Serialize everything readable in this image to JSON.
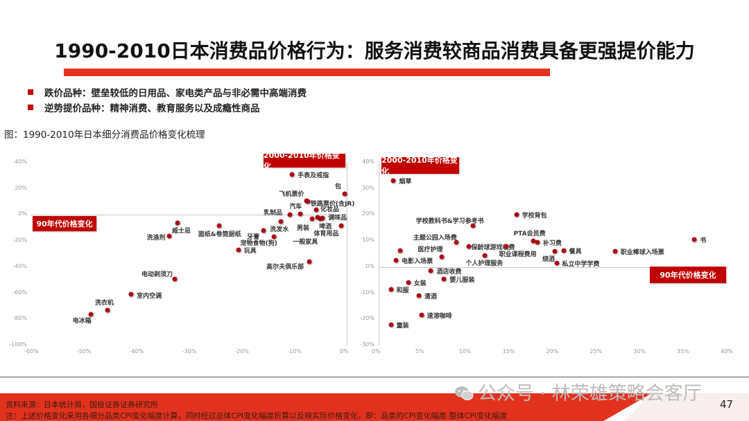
{
  "title": "1990-2010日本消费品价格行为：服务消费较商品消费具备更强提价能力",
  "accent_color": "#c00000",
  "bullets": [
    "跌价品种：壁垒较低的日用品、家电类产品与非必需中高端消费",
    "逆势提价品种：精神消费、教育服务以及成瘾性商品"
  ],
  "figure_caption": "图：1990-2010年日本细分消费品价格变化梳理",
  "footer": {
    "source": "资料来源：日本统计局，国投证券证券研究所",
    "note": "注：上述价格变化采用各细分品类CPI变化幅度计算，同时经过总体CPI变化幅度折算以反映实际价格变化，即：品类的CPI变化幅度-整体CPI变化幅度",
    "watermark": "公众号 · 林荣雄策略会客厅",
    "page_number": "47"
  },
  "chart_data": [
    {
      "type": "scatter",
      "title": "",
      "xlabel": "90年代价格变化",
      "ylabel": "2000-2010年价格变化",
      "x_ticks": [
        "-60%",
        "-50%",
        "-40%",
        "-30%",
        "-20%",
        "-10%",
        "0%"
      ],
      "y_ticks": [
        "40%",
        "20%",
        "0%",
        "-20%",
        "-40%",
        "-60%",
        "-80%",
        "-100%"
      ],
      "xlim": [
        -60,
        0
      ],
      "ylim": [
        -100,
        40
      ],
      "grid": false,
      "points": [
        {
          "label": "手表及戒指",
          "x": -10.4,
          "y": 31
        },
        {
          "label": "包",
          "x": -0.4,
          "y": 16
        },
        {
          "label": "飞机票价",
          "x": -7.6,
          "y": 11
        },
        {
          "label": "铁路票价(含JR)",
          "x": -7.4,
          "y": 10.5
        },
        {
          "label": "汽车",
          "x": -8.8,
          "y": 1
        },
        {
          "label": "化妆品",
          "x": -5.8,
          "y": 4
        },
        {
          "label": "乳制品",
          "x": -10.8,
          "y": 0
        },
        {
          "label": "洗发水",
          "x": -12.5,
          "y": -5
        },
        {
          "label": "男装",
          "x": -6.6,
          "y": -3
        },
        {
          "label": "调味品",
          "x": -4.6,
          "y": -2.5
        },
        {
          "label": "啤酒",
          "x": -5.0,
          "y": -3
        },
        {
          "label": "体育用品",
          "x": -1.0,
          "y": -8
        },
        {
          "label": "一般家具",
          "x": -5.5,
          "y": -2
        },
        {
          "label": "牙膏",
          "x": -15.8,
          "y": -12
        },
        {
          "label": "宠物食物(狗)",
          "x": -13.9,
          "y": -17
        },
        {
          "label": "玩具",
          "x": -20.6,
          "y": -27
        },
        {
          "label": "面纸&卷筒厨纸",
          "x": -24.3,
          "y": -8
        },
        {
          "label": "威士忌",
          "x": -32.2,
          "y": -6
        },
        {
          "label": "洗涤剂",
          "x": -33.8,
          "y": -16
        },
        {
          "label": "高尔夫俱乐部",
          "x": -7.1,
          "y": -36
        },
        {
          "label": "电动剃须刀",
          "x": -32.7,
          "y": -49
        },
        {
          "label": "室内空调",
          "x": -41.0,
          "y": -61
        },
        {
          "label": "洗衣机",
          "x": -45.5,
          "y": -73
        },
        {
          "label": "电冰箱",
          "x": -48.7,
          "y": -76
        }
      ]
    },
    {
      "type": "scatter",
      "title": "",
      "xlabel": "90年代价格变化",
      "ylabel": "2000-2010年价格变化",
      "x_ticks": [
        "0%",
        "5%",
        "10%",
        "15%",
        "20%",
        "25%",
        "30%",
        "35%",
        "40%"
      ],
      "y_ticks": [
        "40%",
        "30%",
        "20%",
        "10%",
        "0%",
        "-10%",
        "-20%",
        "-30%"
      ],
      "xlim": [
        0,
        40
      ],
      "ylim": [
        -30,
        40
      ],
      "grid": false,
      "points": [
        {
          "label": "烟草",
          "x": 1.7,
          "y": 33
        },
        {
          "label": "学校背包",
          "x": 15.8,
          "y": 20
        },
        {
          "label": "学校教科书&学习参考书",
          "x": 10.8,
          "y": 16
        },
        {
          "label": "主题公园入场费",
          "x": 8.9,
          "y": 9.5
        },
        {
          "label": "保龄球游戏收费",
          "x": 10.3,
          "y": 8
        },
        {
          "label": "职业课程费用",
          "x": 14.6,
          "y": 8
        },
        {
          "label": "PTA会员费",
          "x": 17.7,
          "y": 10
        },
        {
          "label": "补习费",
          "x": 18.2,
          "y": 9.5
        },
        {
          "label": "烧酒",
          "x": 20.2,
          "y": 6
        },
        {
          "label": "餐具",
          "x": 21.2,
          "y": 6.3
        },
        {
          "label": "私立中学学费",
          "x": 20.4,
          "y": 1.5
        },
        {
          "label": "职业棒球入场票",
          "x": 27.1,
          "y": 6
        },
        {
          "label": "书",
          "x": 36.2,
          "y": 10.6
        },
        {
          "label": "医疗护理",
          "x": 7.2,
          "y": 4
        },
        {
          "label": "个人护理服务",
          "x": 12.2,
          "y": 4.5
        },
        {
          "label": "电影入场票",
          "x": 2.0,
          "y": 2.7
        },
        {
          "label": "",
          "x": 2.5,
          "y": 6.4
        },
        {
          "label": "酒店收费",
          "x": 6.0,
          "y": -1.3
        },
        {
          "label": "女装",
          "x": 3.4,
          "y": -5.8
        },
        {
          "label": "婴儿服装",
          "x": 7.5,
          "y": -4.5
        },
        {
          "label": "和服",
          "x": 1.4,
          "y": -8.5
        },
        {
          "label": "清酒",
          "x": 4.6,
          "y": -10.9
        },
        {
          "label": "速溶咖啡",
          "x": 4.9,
          "y": -18.3
        },
        {
          "label": "童装",
          "x": 1.4,
          "y": -22
        }
      ]
    }
  ],
  "charts_ui": {
    "left": {
      "tag_top": "2000-2010年价格变化",
      "tag_side": "90年代价格变化",
      "y_ticks": [
        "40%",
        "20%",
        "0%",
        "-20%",
        "-40%",
        "-60%",
        "-80%",
        "-100%"
      ],
      "x_ticks": [
        "-60%",
        "-50%",
        "-40%",
        "-30%",
        "-20%",
        "-10%",
        "0%"
      ]
    },
    "right": {
      "tag_top": "2000-2010年价格变化",
      "tag_side": "90年代价格变化",
      "y_ticks": [
        "40%",
        "30%",
        "20%",
        "10%",
        "0%",
        "-10%",
        "-20%",
        "-30%"
      ],
      "x_ticks": [
        "0%",
        "5%",
        "10%",
        "15%",
        "20%",
        "25%",
        "30%",
        "35%",
        "40%"
      ]
    }
  }
}
